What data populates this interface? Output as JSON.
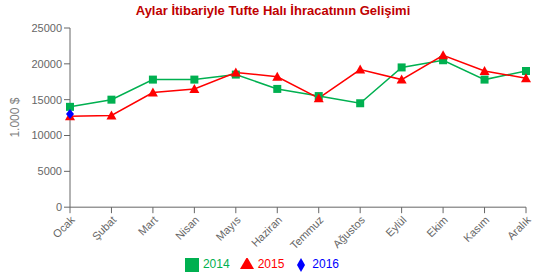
{
  "chart_data": {
    "type": "line",
    "title": "Aylar İtibariyle Tufte Halı İhracatının Gelişimi",
    "y_label": "1.000 $",
    "categories": [
      "Ocak",
      "Şubat",
      "Mart",
      "Nisan",
      "Mayıs",
      "Haziran",
      "Temmuz",
      "Ağustos",
      "Eylül",
      "Ekim",
      "Kasım",
      "Aralık"
    ],
    "series": [
      {
        "name": "2014",
        "color": "#00B050",
        "marker": "square",
        "values": [
          14000,
          15000,
          17800,
          17800,
          18500,
          16500,
          15500,
          14500,
          19500,
          20500,
          17800,
          19000
        ]
      },
      {
        "name": "2015",
        "color": "#FF0000",
        "marker": "triangle",
        "values": [
          12700,
          12800,
          16000,
          16500,
          18800,
          18200,
          15200,
          19200,
          17800,
          21200,
          19000,
          18000
        ]
      },
      {
        "name": "2016",
        "color": "#0000FF",
        "marker": "diamond",
        "values": [
          13000,
          null,
          null,
          null,
          null,
          null,
          null,
          null,
          null,
          null,
          null,
          null
        ]
      }
    ],
    "ylim": [
      0,
      25000
    ],
    "yticks": [
      0,
      5000,
      10000,
      15000,
      20000,
      25000
    ],
    "grid": false,
    "legend": "bottom"
  }
}
